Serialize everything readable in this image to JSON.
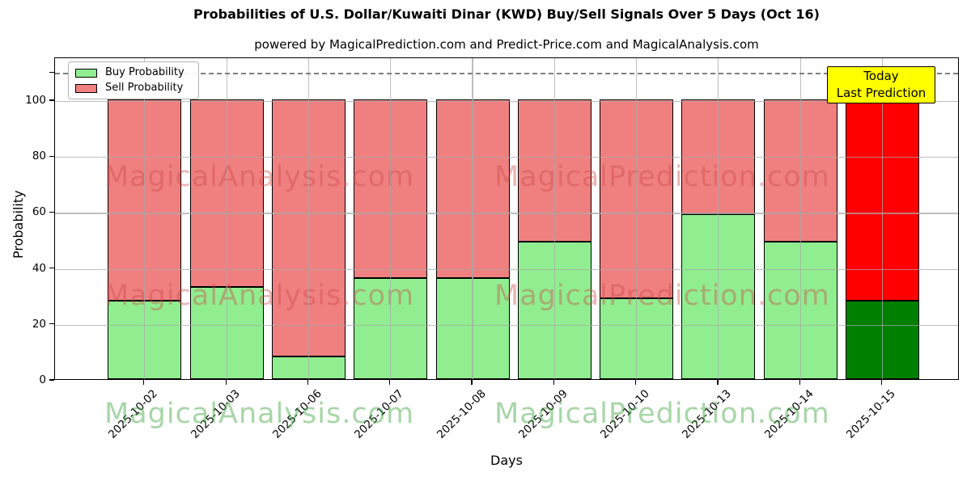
{
  "title": "Probabilities of U.S. Dollar/Kuwaiti Dinar (KWD) Buy/Sell Signals Over 5 Days (Oct 16)",
  "subtitle": "powered by MagicalPrediction.com and Predict-Price.com and MagicalAnalysis.com",
  "legend": {
    "buy_label": "Buy Probability",
    "sell_label": "Sell Probability"
  },
  "annotation": {
    "line1": "Today",
    "line2": "Last Prediction",
    "bg_color": "#ffff00"
  },
  "watermarks": {
    "left": "MagicalAnalysis.com",
    "right": "MagicalPrediction.com"
  },
  "colors": {
    "buy": "#90ee90",
    "sell": "#f08080",
    "today_buy": "#008000",
    "today_sell": "#ff0000",
    "dashed_line": "#7f7f7f",
    "grid": "#a8a8a8",
    "bar_edge": "#000000"
  },
  "chart_data": {
    "type": "bar",
    "stacked": true,
    "categories": [
      "2025-10-02",
      "2025-10-03",
      "2025-10-06",
      "2025-10-07",
      "2025-10-08",
      "2025-10-09",
      "2025-10-10",
      "2025-10-13",
      "2025-10-14",
      "2025-10-15"
    ],
    "series": [
      {
        "name": "Buy Probability",
        "color": "#90ee90",
        "today_color": "#008000",
        "values": [
          28,
          33,
          8,
          36,
          36,
          49,
          29,
          59,
          49,
          28
        ]
      },
      {
        "name": "Sell Probability",
        "color": "#f08080",
        "today_color": "#ff0000",
        "values": [
          72,
          67,
          92,
          64,
          64,
          51,
          71,
          41,
          51,
          72
        ]
      }
    ],
    "today_index": 9,
    "xlabel": "Days",
    "ylabel": "Probability",
    "yticks": [
      0,
      20,
      40,
      60,
      80,
      100
    ],
    "ylim": [
      0,
      115
    ],
    "dashed_line_y": 110,
    "grid": true,
    "legend_position": "upper left"
  }
}
